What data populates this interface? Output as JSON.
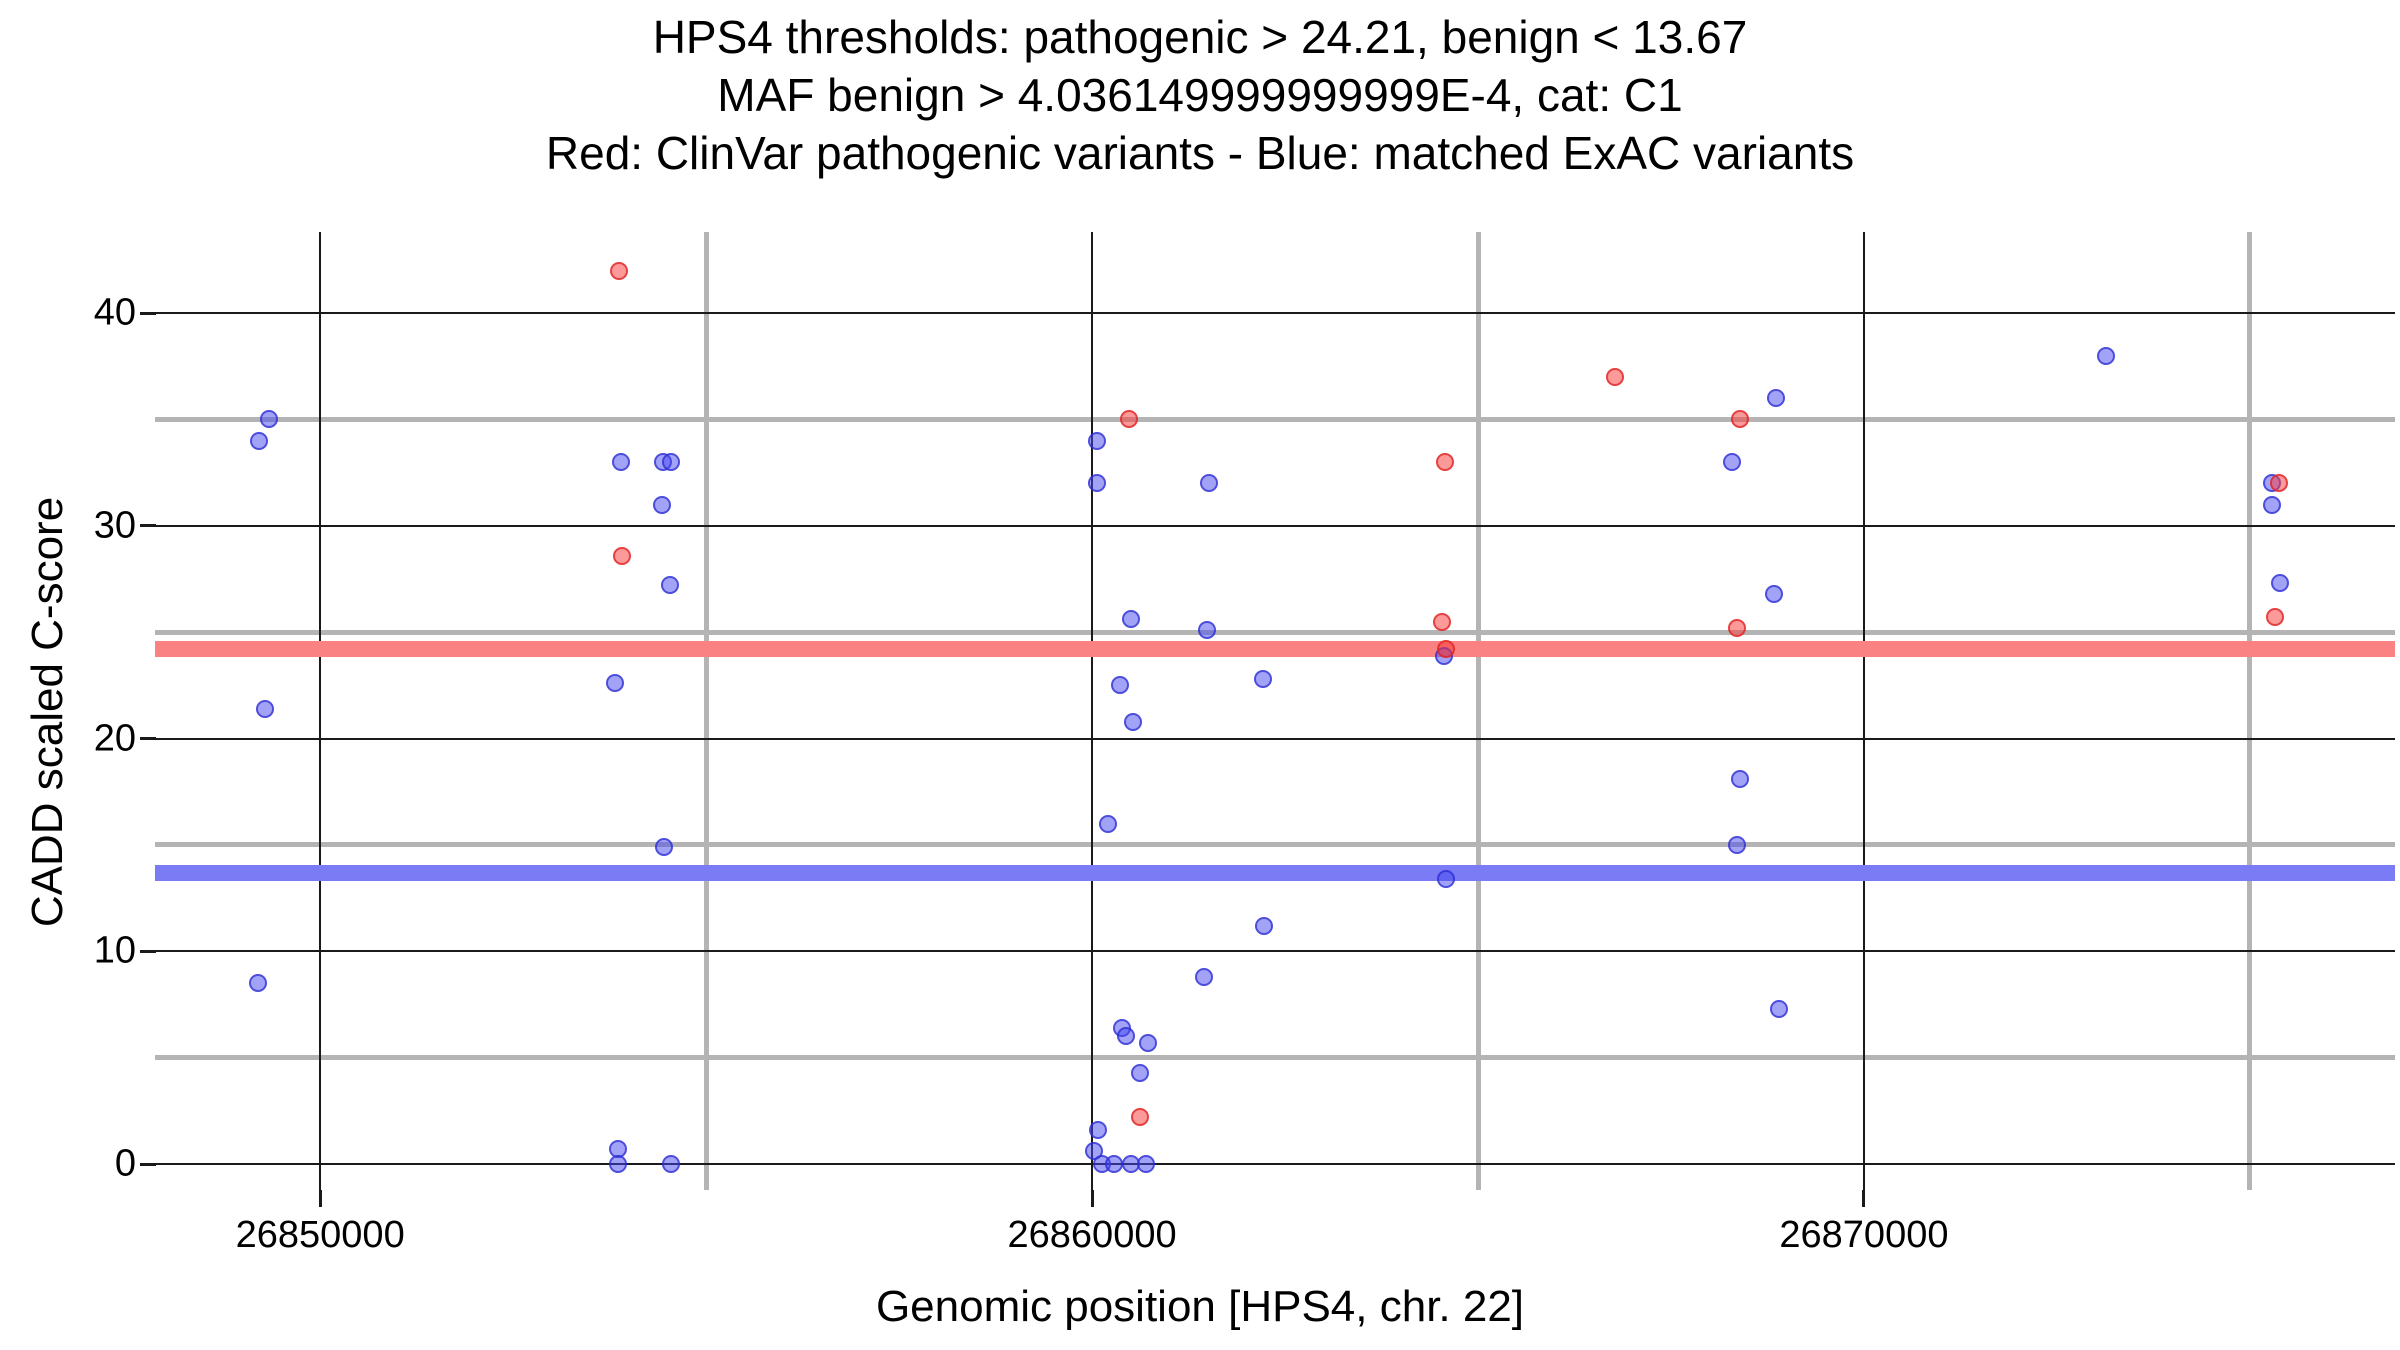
{
  "title": {
    "line1": "HPS4 thresholds: pathogenic > 24.21, benign < 13.67",
    "line2": "MAF benign > 4.036149999999999E-4, cat: C1",
    "line3": "Red: ClinVar pathogenic variants - Blue: matched ExAC variants"
  },
  "chart_data": {
    "type": "scatter",
    "xlabel": "Genomic position [HPS4, chr. 22]",
    "ylabel": "CADD scaled C-score",
    "xlim": [
      26847860,
      26876880
    ],
    "ylim": [
      -1.22,
      43.81
    ],
    "x_ticks": [
      {
        "pos": 26850000,
        "label": "26850000"
      },
      {
        "pos": 26860000,
        "label": "26860000"
      },
      {
        "pos": 26870000,
        "label": "26870000"
      }
    ],
    "x_minor": [
      26855000,
      26865000,
      26875000
    ],
    "y_ticks": [
      {
        "value": 0,
        "label": "0"
      },
      {
        "value": 10,
        "label": "10"
      },
      {
        "value": 20,
        "label": "20"
      },
      {
        "value": 30,
        "label": "30"
      },
      {
        "value": 40,
        "label": "40"
      }
    ],
    "y_minor": [
      5,
      15,
      25,
      35
    ],
    "grid": {
      "major_color": "#1a1a1a",
      "minor_color": "#b4b4b4"
    },
    "thresholds": {
      "pathogenic": {
        "value": 24.21,
        "color": "#FB8282",
        "meaning": "pathogenic > 24.21"
      },
      "benign": {
        "value": 13.67,
        "color": "#7B7CF5",
        "meaning": "benign < 13.67"
      }
    },
    "series": [
      {
        "name": "ClinVar pathogenic variants",
        "color": "#F94C4C",
        "points": [
          [
            26853870,
            42.0
          ],
          [
            26853910,
            28.6
          ],
          [
            26860480,
            35.0
          ],
          [
            26860620,
            2.2
          ],
          [
            26864570,
            33.0
          ],
          [
            26864540,
            25.5
          ],
          [
            26864580,
            24.2
          ],
          [
            26866780,
            37.0
          ],
          [
            26868400,
            35.0
          ],
          [
            26868350,
            25.2
          ],
          [
            26875380,
            32.0
          ],
          [
            26875320,
            25.7
          ]
        ]
      },
      {
        "name": "matched ExAC variants",
        "color": "#4A4CF0",
        "points": [
          [
            26849340,
            35.0
          ],
          [
            26849210,
            34.0
          ],
          [
            26849280,
            21.4
          ],
          [
            26849190,
            8.5
          ],
          [
            26853900,
            33.0
          ],
          [
            26854440,
            33.0
          ],
          [
            26854550,
            33.0
          ],
          [
            26854430,
            31.0
          ],
          [
            26854530,
            27.2
          ],
          [
            26853820,
            22.6
          ],
          [
            26854460,
            14.9
          ],
          [
            26853860,
            0.7
          ],
          [
            26853860,
            0.0
          ],
          [
            26854550,
            0.0
          ],
          [
            26860070,
            34.0
          ],
          [
            26860070,
            32.0
          ],
          [
            26861510,
            32.0
          ],
          [
            26860510,
            25.6
          ],
          [
            26861490,
            25.1
          ],
          [
            26862220,
            22.8
          ],
          [
            26860360,
            22.5
          ],
          [
            26860530,
            20.8
          ],
          [
            26860200,
            16.0
          ],
          [
            26862230,
            11.2
          ],
          [
            26861450,
            8.8
          ],
          [
            26860390,
            6.4
          ],
          [
            26860440,
            6.0
          ],
          [
            26860730,
            5.7
          ],
          [
            26860620,
            4.3
          ],
          [
            26860080,
            1.6
          ],
          [
            26860030,
            0.6
          ],
          [
            26860130,
            0.0
          ],
          [
            26860290,
            0.0
          ],
          [
            26860510,
            0.0
          ],
          [
            26860700,
            0.0
          ],
          [
            26864560,
            23.9
          ],
          [
            26864580,
            13.4
          ],
          [
            26868860,
            36.0
          ],
          [
            26868290,
            33.0
          ],
          [
            26868840,
            26.8
          ],
          [
            26868400,
            18.1
          ],
          [
            26868360,
            15.0
          ],
          [
            26868900,
            7.3
          ],
          [
            26873140,
            38.0
          ],
          [
            26875290,
            32.0
          ],
          [
            26875290,
            31.0
          ],
          [
            26875390,
            27.3
          ]
        ]
      }
    ]
  }
}
